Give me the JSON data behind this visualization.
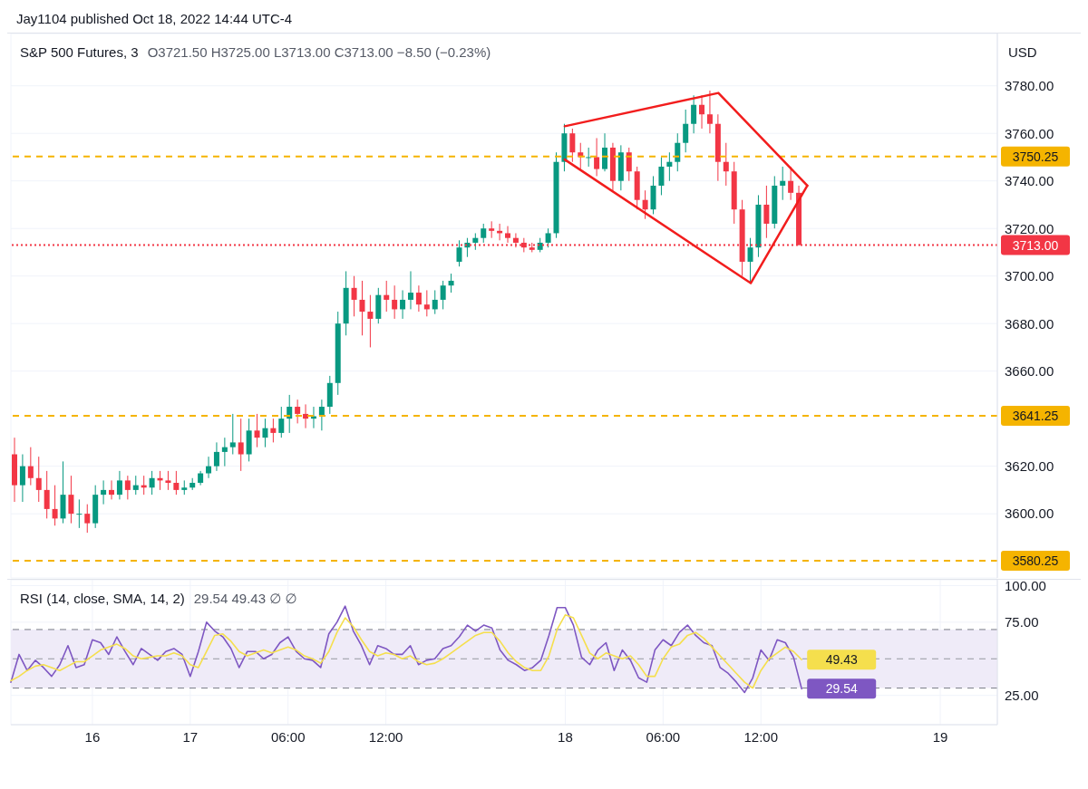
{
  "chart_data": [
    {
      "type": "candlestick",
      "title": "S&P 500 Futures, 3",
      "subtitle": "O3721.50 H3725.00 L3713.00 C3713.00 −8.50 (−0.23%)",
      "ylabel": "USD",
      "annotations": [
        "Jay1104 published Oct 18, 2022 14:44 UTC-4"
      ],
      "categories": [
        null,
        null,
        null,
        null,
        null,
        null,
        null,
        null,
        null,
        null,
        null,
        null,
        null,
        null,
        null,
        null,
        null,
        null,
        null,
        null,
        null,
        null,
        null,
        null,
        null,
        null,
        null,
        null,
        null,
        null,
        null,
        null,
        null,
        null,
        null,
        null,
        null,
        null,
        null,
        null,
        null,
        null,
        null,
        null,
        null,
        null,
        null,
        null,
        null,
        null,
        null,
        null,
        null,
        null,
        null,
        null,
        null,
        null,
        null,
        null,
        null,
        null,
        null,
        null,
        null,
        null,
        null,
        null,
        null,
        null,
        null,
        null,
        null,
        null,
        null,
        null,
        null,
        null,
        null,
        null,
        null,
        null,
        null,
        null,
        null,
        null,
        null,
        null,
        null,
        null,
        null,
        null,
        null,
        null,
        null,
        null,
        null,
        null,
        null,
        null,
        null,
        null,
        null,
        null,
        null,
        null,
        null,
        null,
        null,
        null,
        null,
        null,
        null,
        null,
        null,
        null,
        null,
        null,
        null,
        null,
        null,
        null
      ],
      "ohlc": [
        [
          3625,
          3632,
          3605,
          3612
        ],
        [
          3612,
          3625,
          3605,
          3620
        ],
        [
          3620,
          3628,
          3612,
          3615
        ],
        [
          3615,
          3624,
          3605,
          3610
        ],
        [
          3610,
          3618,
          3598,
          3602
        ],
        [
          3602,
          3612,
          3595,
          3598
        ],
        [
          3598,
          3622,
          3596,
          3608
        ],
        [
          3608,
          3616,
          3596,
          3600
        ],
        [
          3600,
          3606,
          3594,
          3600
        ],
        [
          3600,
          3604,
          3592,
          3596
        ],
        [
          3596,
          3612,
          3594,
          3608
        ],
        [
          3608,
          3614,
          3604,
          3610
        ],
        [
          3610,
          3614,
          3606,
          3608
        ],
        [
          3608,
          3618,
          3606,
          3614
        ],
        [
          3614,
          3616,
          3606,
          3610
        ],
        [
          3610,
          3616,
          3608,
          3612
        ],
        [
          3612,
          3616,
          3608,
          3611
        ],
        [
          3611,
          3618,
          3608,
          3615
        ],
        [
          3615,
          3618,
          3610,
          3614
        ],
        [
          3614,
          3618,
          3610,
          3613
        ],
        [
          3613,
          3618,
          3608,
          3610
        ],
        [
          3610,
          3614,
          3608,
          3611
        ],
        [
          3611,
          3615,
          3610,
          3613
        ],
        [
          3613,
          3618,
          3612,
          3617
        ],
        [
          3617,
          3624,
          3615,
          3620
        ],
        [
          3620,
          3630,
          3618,
          3626
        ],
        [
          3626,
          3632,
          3620,
          3628
        ],
        [
          3628,
          3642,
          3625,
          3630
        ],
        [
          3630,
          3640,
          3618,
          3625
        ],
        [
          3625,
          3640,
          3622,
          3635
        ],
        [
          3635,
          3642,
          3628,
          3632
        ],
        [
          3632,
          3640,
          3628,
          3636
        ],
        [
          3636,
          3640,
          3630,
          3634
        ],
        [
          3634,
          3645,
          3632,
          3640
        ],
        [
          3640,
          3650,
          3634,
          3645
        ],
        [
          3645,
          3648,
          3638,
          3642
        ],
        [
          3642,
          3646,
          3636,
          3640
        ],
        [
          3640,
          3645,
          3636,
          3641
        ],
        [
          3641,
          3648,
          3635,
          3645
        ],
        [
          3645,
          3658,
          3642,
          3655
        ],
        [
          3655,
          3685,
          3650,
          3680
        ],
        [
          3680,
          3702,
          3675,
          3695
        ],
        [
          3695,
          3700,
          3683,
          3690
        ],
        [
          3690,
          3698,
          3675,
          3685
        ],
        [
          3685,
          3692,
          3670,
          3682
        ],
        [
          3682,
          3695,
          3680,
          3692
        ],
        [
          3692,
          3698,
          3685,
          3690
        ],
        [
          3690,
          3696,
          3682,
          3686
        ],
        [
          3686,
          3694,
          3682,
          3690
        ],
        [
          3690,
          3702,
          3686,
          3693
        ],
        [
          3693,
          3696,
          3685,
          3688
        ],
        [
          3688,
          3694,
          3683,
          3686
        ],
        [
          3686,
          3694,
          3684,
          3690
        ],
        [
          3690,
          3698,
          3686,
          3696
        ],
        [
          3696,
          3701,
          3693,
          3698
        ],
        [
          3706,
          3715,
          3704,
          3712
        ],
        [
          3712,
          3716,
          3708,
          3714
        ],
        [
          3714,
          3718,
          3711,
          3716
        ],
        [
          3716,
          3722,
          3714,
          3720
        ],
        [
          3720,
          3723,
          3716,
          3719
        ],
        [
          3719,
          3722,
          3715,
          3718
        ],
        [
          3718,
          3721,
          3714,
          3716
        ],
        [
          3716,
          3718,
          3712,
          3714
        ],
        [
          3714,
          3716,
          3710,
          3712
        ],
        [
          3712,
          3714,
          3710,
          3711
        ],
        [
          3711,
          3716,
          3710,
          3714
        ],
        [
          3714,
          3720,
          3712,
          3718
        ],
        [
          3718,
          3752,
          3716,
          3748
        ],
        [
          3748,
          3764,
          3744,
          3760
        ],
        [
          3760,
          3762,
          3748,
          3752
        ],
        [
          3752,
          3756,
          3745,
          3750
        ],
        [
          3750,
          3754,
          3746,
          3750
        ],
        [
          3750,
          3758,
          3742,
          3745
        ],
        [
          3745,
          3760,
          3744,
          3754
        ],
        [
          3754,
          3756,
          3736,
          3740
        ],
        [
          3740,
          3755,
          3736,
          3752
        ],
        [
          3752,
          3754,
          3740,
          3744
        ],
        [
          3744,
          3746,
          3728,
          3732
        ],
        [
          3732,
          3736,
          3724,
          3728
        ],
        [
          3728,
          3742,
          3726,
          3738
        ],
        [
          3738,
          3750,
          3734,
          3746
        ],
        [
          3746,
          3752,
          3740,
          3748
        ],
        [
          3748,
          3760,
          3744,
          3756
        ],
        [
          3756,
          3770,
          3752,
          3764
        ],
        [
          3764,
          3776,
          3760,
          3772
        ],
        [
          3772,
          3776,
          3762,
          3768
        ],
        [
          3768,
          3778,
          3760,
          3764
        ],
        [
          3764,
          3768,
          3740,
          3748
        ],
        [
          3748,
          3756,
          3738,
          3744
        ],
        [
          3744,
          3748,
          3722,
          3728
        ],
        [
          3728,
          3732,
          3700,
          3706
        ],
        [
          3706,
          3716,
          3697,
          3712
        ],
        [
          3712,
          3734,
          3708,
          3730
        ],
        [
          3730,
          3738,
          3716,
          3722
        ],
        [
          3722,
          3742,
          3720,
          3738
        ],
        [
          3738,
          3746,
          3732,
          3740
        ],
        [
          3740,
          3746,
          3732,
          3735
        ],
        [
          3735,
          3738,
          3713,
          3713
        ],
        null,
        null,
        null,
        null,
        null,
        null,
        null,
        null,
        null,
        null,
        null,
        null,
        null,
        null,
        null,
        null,
        null,
        null,
        null,
        null,
        null,
        null,
        null,
        null
      ],
      "colors": [
        "#f23645",
        "#089981",
        "#f23645",
        "#f23645",
        "#f23645",
        "#f23645",
        "#089981",
        "#f23645",
        "#089981",
        "#f23645",
        "#089981",
        "#089981",
        "#f23645",
        "#089981",
        "#f23645",
        "#089981",
        "#f23645",
        "#089981",
        "#f23645",
        "#f23645",
        "#f23645",
        "#089981",
        "#089981",
        "#089981",
        "#089981",
        "#089981",
        "#089981",
        "#089981",
        "#f23645",
        "#089981",
        "#f23645",
        "#089981",
        "#f23645",
        "#089981",
        "#089981",
        "#f23645",
        "#f23645",
        "#089981",
        "#089981",
        "#089981",
        "#089981",
        "#089981",
        "#f23645",
        "#f23645",
        "#f23645",
        "#089981",
        "#f23645",
        "#f23645",
        "#089981",
        "#089981",
        "#f23645",
        "#f23645",
        "#089981",
        "#089981",
        "#089981",
        "#089981",
        "#089981",
        "#089981",
        "#089981",
        "#f23645",
        "#f23645",
        "#f23645",
        "#f23645",
        "#f23645",
        "#f23645",
        "#089981",
        "#089981",
        "#089981",
        "#089981",
        "#f23645",
        "#f23645",
        "#089981",
        "#f23645",
        "#089981",
        "#f23645",
        "#089981",
        "#f23645",
        "#f23645",
        "#f23645",
        "#089981",
        "#089981",
        "#089981",
        "#089981",
        "#089981",
        "#089981",
        "#f23645",
        "#f23645",
        "#f23645",
        "#f23645",
        "#f23645",
        "#f23645",
        "#089981",
        "#089981",
        "#f23645",
        "#089981",
        "#089981",
        "#f23645",
        "#f23645",
        null,
        null,
        null,
        null,
        null,
        null,
        null,
        null,
        null,
        null,
        null,
        null,
        null,
        null,
        null,
        null,
        null,
        null,
        null,
        null,
        null,
        null,
        null,
        null
      ],
      "series": [
        {
          "type": "line",
          "color": "#f21d1d",
          "values": [
            null,
            null,
            null,
            null,
            null,
            null,
            null,
            null,
            null,
            null,
            null,
            null,
            null,
            null,
            null,
            null,
            null,
            null,
            null,
            null,
            null,
            null,
            null,
            null,
            null,
            null,
            null,
            null,
            null,
            null,
            null,
            null,
            null,
            null,
            null,
            null,
            null,
            null,
            null,
            null,
            null,
            null,
            null,
            null,
            null,
            null,
            null,
            null,
            null,
            null,
            null,
            null,
            null,
            null,
            null,
            null,
            null,
            null,
            null,
            null,
            null,
            null,
            null,
            null,
            null,
            null,
            null,
            null,
            3763,
            null,
            null,
            null,
            null,
            null,
            null,
            null,
            null,
            null,
            null,
            null,
            null,
            null,
            null,
            null,
            null,
            null,
            null,
            3777,
            null,
            null,
            null,
            null,
            null,
            null,
            null,
            null,
            null,
            null,
            3738,
            null,
            null,
            null,
            null,
            null,
            null,
            null,
            null,
            null,
            null,
            null,
            null,
            null,
            null,
            null,
            null,
            null,
            null,
            null,
            null,
            null,
            null,
            null
          ]
        },
        {
          "type": "line",
          "color": "#f21d1d",
          "values": [
            null,
            null,
            null,
            null,
            null,
            null,
            null,
            null,
            null,
            null,
            null,
            null,
            null,
            null,
            null,
            null,
            null,
            null,
            null,
            null,
            null,
            null,
            null,
            null,
            null,
            null,
            null,
            null,
            null,
            null,
            null,
            null,
            null,
            null,
            null,
            null,
            null,
            null,
            null,
            null,
            null,
            null,
            null,
            null,
            null,
            null,
            null,
            null,
            null,
            null,
            null,
            null,
            null,
            null,
            null,
            null,
            null,
            null,
            null,
            null,
            null,
            null,
            null,
            null,
            null,
            null,
            null,
            null,
            3749,
            null,
            null,
            null,
            null,
            null,
            null,
            null,
            null,
            null,
            null,
            null,
            null,
            null,
            null,
            null,
            null,
            null,
            null,
            null,
            null,
            null,
            null,
            3697,
            null,
            null,
            null,
            null,
            null,
            null,
            3738,
            null,
            null,
            null,
            null,
            null,
            null,
            null,
            null,
            null,
            null,
            null,
            null,
            null,
            null,
            null,
            null,
            null,
            null,
            null,
            null,
            null,
            null,
            null
          ]
        }
      ],
      "ylim": [
        3573,
        3802
      ],
      "yticks": [
        {
          "value": 3600,
          "label": "3600.00"
        },
        {
          "value": 3620,
          "label": "3620.00"
        },
        {
          "value": 3660,
          "label": "3660.00"
        },
        {
          "value": 3680,
          "label": "3680.00"
        },
        {
          "value": 3700,
          "label": "3700.00"
        },
        {
          "value": 3720,
          "label": "3720.00"
        },
        {
          "value": 3740,
          "label": "3740.00"
        },
        {
          "value": 3760,
          "label": "3760.00"
        },
        {
          "value": 3780,
          "label": "3780.00"
        }
      ],
      "ref_lines": [
        {
          "axis": "y",
          "value": 3750.25,
          "label": "3750.25",
          "color": "#f5b400",
          "line_style": "dashed"
        },
        {
          "axis": "y",
          "value": 3641.25,
          "label": "3641.25",
          "color": "#f5b400",
          "line_style": "dashed"
        },
        {
          "axis": "y",
          "value": 3580.25,
          "label": "3580.25",
          "color": "#f5b400",
          "line_style": "dashed"
        },
        {
          "axis": "y",
          "value": 3713,
          "label": "3713.00",
          "color": "#f23645",
          "line_style": "dotted"
        }
      ],
      "grid": true,
      "tick_labels": "y"
    },
    {
      "type": "line",
      "title": "RSI (14, close, SMA, 14, 2)",
      "subtitle": "29.54 49.43 ∅ ∅",
      "categories": [
        null,
        null,
        null,
        null,
        null,
        null,
        null,
        null,
        null,
        null,
        "16",
        null,
        null,
        null,
        null,
        null,
        null,
        null,
        null,
        null,
        null,
        null,
        "17",
        null,
        null,
        null,
        null,
        null,
        null,
        null,
        null,
        null,
        null,
        null,
        "06:00",
        null,
        null,
        null,
        null,
        null,
        null,
        null,
        null,
        null,
        null,
        null,
        "12:00",
        null,
        null,
        null,
        null,
        null,
        null,
        null,
        null,
        null,
        null,
        null,
        null,
        null,
        null,
        null,
        null,
        null,
        null,
        null,
        null,
        null,
        "18",
        null,
        null,
        null,
        null,
        null,
        null,
        null,
        null,
        null,
        null,
        null,
        "06:00",
        null,
        null,
        null,
        null,
        null,
        null,
        null,
        null,
        null,
        null,
        null,
        "12:00",
        null,
        null,
        null,
        null,
        null,
        null,
        null,
        null,
        null,
        null,
        null,
        null,
        null,
        null,
        null,
        null,
        null,
        null,
        null,
        null,
        null,
        "19",
        null,
        null,
        null,
        null,
        null,
        null,
        null
      ],
      "series": [
        {
          "color": "#7e57c2",
          "values": [
            34,
            53,
            42,
            49,
            44,
            38,
            46,
            59,
            44,
            46,
            63,
            61,
            53,
            65,
            55,
            46,
            57,
            53,
            49,
            55,
            57,
            53,
            38,
            55,
            75,
            69,
            65,
            57,
            44,
            55,
            55,
            50,
            53,
            61,
            65,
            55,
            50,
            49,
            44,
            67,
            75,
            86,
            69,
            59,
            46,
            59,
            57,
            53,
            53,
            59,
            46,
            49,
            50,
            57,
            59,
            65,
            73,
            69,
            73,
            71,
            56,
            49,
            46,
            42,
            44,
            49,
            66,
            85,
            85,
            73,
            51,
            46,
            56,
            61,
            42,
            56,
            49,
            37,
            34,
            56,
            63,
            59,
            68,
            73,
            66,
            61,
            59,
            44,
            40,
            34,
            27,
            37,
            56,
            49,
            63,
            61,
            51,
            29.54,
            null,
            null,
            null,
            null,
            null,
            null,
            null,
            null,
            null,
            null,
            null,
            null,
            null,
            null,
            null,
            null,
            null,
            null,
            null,
            null,
            null,
            null,
            null,
            null
          ],
          "value_labels": [
            null,
            null,
            null,
            null,
            null,
            null,
            null,
            null,
            null,
            null,
            null,
            null,
            null,
            null,
            null,
            null,
            null,
            null,
            null,
            null,
            null,
            null,
            null,
            null,
            null,
            null,
            null,
            null,
            null,
            null,
            null,
            null,
            null,
            null,
            null,
            null,
            null,
            null,
            null,
            null,
            null,
            null,
            null,
            null,
            null,
            null,
            null,
            null,
            null,
            null,
            null,
            null,
            null,
            null,
            null,
            null,
            null,
            null,
            null,
            null,
            null,
            null,
            null,
            null,
            null,
            null,
            null,
            null,
            null,
            null,
            null,
            null,
            null,
            null,
            null,
            null,
            null,
            null,
            null,
            null,
            null,
            null,
            null,
            null,
            null,
            null,
            null,
            null,
            null,
            null,
            null,
            null,
            null,
            null,
            null,
            null,
            null,
            "29.54",
            null,
            null,
            null,
            null,
            null,
            null,
            null,
            null,
            null,
            null,
            null,
            null,
            null,
            null,
            null,
            null,
            null,
            null,
            null,
            null,
            null,
            null,
            null,
            null
          ]
        },
        {
          "color": "#f5df4d",
          "values": [
            35,
            38,
            42,
            45,
            46,
            44,
            42,
            45,
            48,
            48,
            52,
            56,
            58,
            60,
            57,
            52,
            50,
            51,
            52,
            52,
            54,
            52,
            46,
            44,
            55,
            66,
            67,
            62,
            55,
            52,
            54,
            56,
            54,
            56,
            58,
            56,
            52,
            50,
            47,
            55,
            68,
            78,
            72,
            63,
            55,
            52,
            54,
            53,
            50,
            52,
            48,
            46,
            47,
            50,
            54,
            58,
            62,
            66,
            68,
            68,
            62,
            54,
            48,
            44,
            42,
            42,
            52,
            70,
            80,
            78,
            66,
            54,
            50,
            54,
            52,
            50,
            52,
            46,
            38,
            38,
            50,
            58,
            60,
            66,
            68,
            64,
            58,
            52,
            46,
            40,
            34,
            30,
            42,
            50,
            54,
            58,
            55,
            49.43,
            null,
            null,
            null,
            null,
            null,
            null,
            null,
            null,
            null,
            null,
            null,
            null,
            null,
            null,
            null,
            null,
            null,
            null,
            null,
            null,
            null,
            null,
            null,
            null
          ],
          "value_labels": [
            null,
            null,
            null,
            null,
            null,
            null,
            null,
            null,
            null,
            null,
            null,
            null,
            null,
            null,
            null,
            null,
            null,
            null,
            null,
            null,
            null,
            null,
            null,
            null,
            null,
            null,
            null,
            null,
            null,
            null,
            null,
            null,
            null,
            null,
            null,
            null,
            null,
            null,
            null,
            null,
            null,
            null,
            null,
            null,
            null,
            null,
            null,
            null,
            null,
            null,
            null,
            null,
            null,
            null,
            null,
            null,
            null,
            null,
            null,
            null,
            null,
            null,
            null,
            null,
            null,
            null,
            null,
            null,
            null,
            null,
            null,
            null,
            null,
            null,
            null,
            null,
            null,
            null,
            null,
            null,
            null,
            null,
            null,
            null,
            null,
            null,
            null,
            null,
            null,
            null,
            null,
            null,
            null,
            null,
            null,
            null,
            null,
            "49.43",
            null,
            null,
            null,
            null,
            null,
            null,
            null,
            null,
            null,
            null,
            null,
            null,
            null,
            null,
            null,
            null,
            null,
            null,
            null,
            null,
            null,
            null,
            null,
            null
          ]
        }
      ],
      "ylim": [
        5,
        104
      ],
      "yticks": [
        {
          "value": 25,
          "label": "25.00"
        },
        {
          "value": 75,
          "label": "75.00"
        },
        {
          "value": 100,
          "label": "100.00"
        }
      ],
      "bands": [
        {
          "axis": "y",
          "from": 30,
          "to": 70,
          "color": "#efebf8"
        }
      ],
      "ref_lines": [
        {
          "axis": "y",
          "value": 70,
          "color": "#787b86",
          "line_style": "dashed"
        },
        {
          "axis": "y",
          "value": 50,
          "color": "#9598a1",
          "line_style": "dashed"
        },
        {
          "axis": "y",
          "value": 30,
          "color": "#787b86",
          "line_style": "dashed"
        }
      ],
      "grid": true
    }
  ]
}
